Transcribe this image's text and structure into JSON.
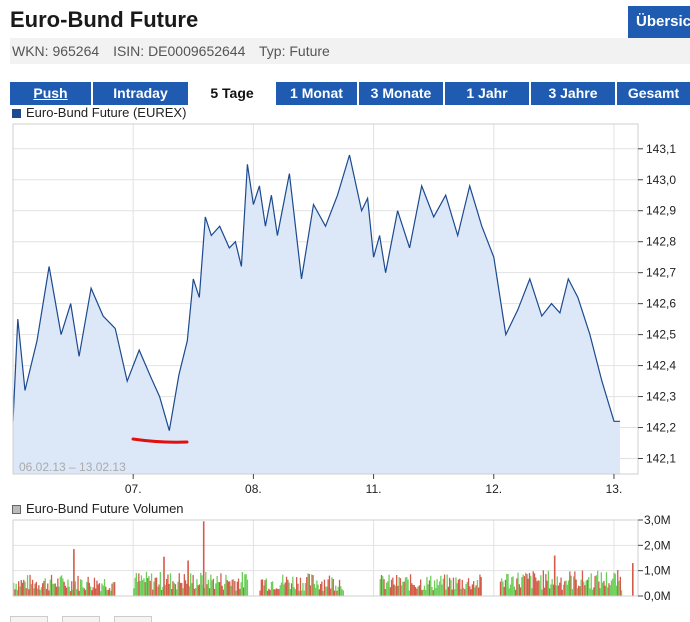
{
  "header": {
    "title": "Euro-Bund Future",
    "overview_button": "Übersicht",
    "wkn": "WKN: 965264",
    "isin": "ISIN: DE0009652644",
    "typ": "Typ: Future"
  },
  "tabs": [
    {
      "label": "Push",
      "active": false,
      "underline": true
    },
    {
      "label": "Intraday",
      "active": false,
      "underline": false
    },
    {
      "label": "5 Tage",
      "active": true,
      "underline": false
    },
    {
      "label": "1 Monat",
      "active": false,
      "underline": false
    },
    {
      "label": "3 Monate",
      "active": false,
      "underline": false
    },
    {
      "label": "1 Jahr",
      "active": false,
      "underline": false
    },
    {
      "label": "3 Jahre",
      "active": false,
      "underline": false
    },
    {
      "label": "Gesamt",
      "active": false,
      "underline": false
    }
  ],
  "colors": {
    "accent": "#1f5bb0",
    "price_line": "#1c4a8f",
    "price_fill": "#dce7f8",
    "volume_up": "#6ccf5a",
    "volume_down": "#d45a4a",
    "annotation": "#e01010"
  },
  "chart_data": [
    {
      "type": "area",
      "legend": "Euro-Bund Future (EUREX)",
      "range_label": "06.02.13 – 13.02.13",
      "ylim": [
        142.05,
        143.18
      ],
      "yticks": [
        "143,1",
        "143,0",
        "142,9",
        "142,8",
        "142,7",
        "142,6",
        "142,5",
        "142,4",
        "142,3",
        "142,2",
        "142,1"
      ],
      "ytick_values": [
        143.1,
        143.0,
        142.9,
        142.8,
        142.7,
        142.6,
        142.5,
        142.4,
        142.3,
        142.2,
        142.1
      ],
      "xlim": [
        0,
        5.2
      ],
      "xticks": [
        "07.",
        "08.",
        "11.",
        "12.",
        "13."
      ],
      "xtick_values": [
        1,
        2,
        3,
        4,
        5
      ],
      "grid": true,
      "series": [
        {
          "x": [
            0,
            0.04,
            0.1,
            0.2,
            0.3,
            0.4,
            0.48,
            0.55,
            0.65,
            0.75,
            0.85,
            0.95,
            1.05,
            1.15,
            1.22,
            1.3,
            1.38,
            1.45,
            1.5,
            1.55,
            1.6,
            1.65,
            1.72,
            1.8,
            1.85,
            1.9,
            1.95,
            2.0,
            2.05,
            2.1,
            2.15,
            2.2,
            2.3,
            2.4,
            2.5,
            2.6,
            2.7,
            2.8,
            2.9,
            2.95,
            3.0,
            3.05,
            3.1,
            3.2,
            3.3,
            3.4,
            3.5,
            3.6,
            3.7,
            3.8,
            3.9,
            4.0,
            4.1,
            4.2,
            4.3,
            4.4,
            4.48,
            4.55,
            4.62,
            4.7,
            4.8,
            4.9,
            5.0,
            5.05,
            5.1,
            5.15,
            5.2
          ],
          "y": [
            142.22,
            142.55,
            142.32,
            142.48,
            142.72,
            142.5,
            142.6,
            142.43,
            142.65,
            142.56,
            142.52,
            142.35,
            142.45,
            142.36,
            142.3,
            142.19,
            142.37,
            142.48,
            142.68,
            142.62,
            142.88,
            142.82,
            142.85,
            142.78,
            142.8,
            142.72,
            143.05,
            142.92,
            142.98,
            142.85,
            142.95,
            142.82,
            143.02,
            142.68,
            142.92,
            142.85,
            142.95,
            143.08,
            142.9,
            142.94,
            142.75,
            142.82,
            142.7,
            142.9,
            142.78,
            142.98,
            142.88,
            142.95,
            142.82,
            142.98,
            142.85,
            142.75,
            142.5,
            142.58,
            142.68,
            142.56,
            142.6,
            142.57,
            142.68,
            142.62,
            142.5,
            142.35,
            142.22,
            142.22,
            142.22,
            142.22,
            142.22
          ]
        }
      ]
    },
    {
      "type": "bar",
      "legend": "Euro-Bund Future Volumen",
      "ylim": [
        0,
        3.0
      ],
      "yticks": [
        "3,0M",
        "2,0M",
        "1,0M",
        "0,0M"
      ],
      "ytick_values": [
        3.0,
        2.0,
        1.0,
        0.0
      ],
      "xlim": [
        0,
        5.2
      ],
      "sessions": [
        {
          "start": 0.0,
          "end": 0.85,
          "level": 0.75
        },
        {
          "start": 1.0,
          "end": 1.95,
          "level": 0.85
        },
        {
          "start": 2.05,
          "end": 2.75,
          "level": 0.8
        },
        {
          "start": 3.05,
          "end": 3.9,
          "level": 0.75
        },
        {
          "start": 4.05,
          "end": 5.2,
          "level": 0.9
        }
      ],
      "spikes": [
        {
          "x": 0.5,
          "value": 1.85
        },
        {
          "x": 1.25,
          "value": 1.55
        },
        {
          "x": 1.58,
          "value": 2.95
        },
        {
          "x": 1.45,
          "value": 1.4
        },
        {
          "x": 4.5,
          "value": 1.6
        },
        {
          "x": 5.15,
          "value": 1.3
        }
      ]
    }
  ]
}
